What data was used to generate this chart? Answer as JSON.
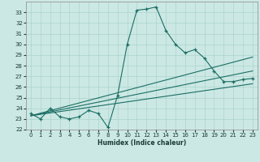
{
  "xlabel": "Humidex (Indice chaleur)",
  "ylabel": "",
  "bg_color": "#cce8e4",
  "line_color": "#1a6e64",
  "grid_color": "#aad4cc",
  "xlim": [
    -0.5,
    23.5
  ],
  "ylim": [
    22,
    34
  ],
  "yticks": [
    22,
    23,
    24,
    25,
    26,
    27,
    28,
    29,
    30,
    31,
    32,
    33
  ],
  "xticks": [
    0,
    1,
    2,
    3,
    4,
    5,
    6,
    7,
    8,
    9,
    10,
    11,
    12,
    13,
    14,
    15,
    16,
    17,
    18,
    19,
    20,
    21,
    22,
    23
  ],
  "main_x": [
    0,
    1,
    2,
    3,
    4,
    5,
    6,
    7,
    8,
    9,
    10,
    11,
    12,
    13,
    14,
    15,
    16,
    17,
    18,
    19,
    20,
    21,
    22,
    23
  ],
  "main_y": [
    23.5,
    23.0,
    24.0,
    23.2,
    23.0,
    23.2,
    23.8,
    23.5,
    22.2,
    25.2,
    30.0,
    33.2,
    33.3,
    33.5,
    31.3,
    30.0,
    29.2,
    29.5,
    28.7,
    27.5,
    26.5,
    26.5,
    26.7,
    26.8
  ],
  "line2_x": [
    0,
    23
  ],
  "line2_y": [
    23.3,
    28.8
  ],
  "line3_x": [
    0,
    23
  ],
  "line3_y": [
    23.3,
    27.5
  ],
  "line4_x": [
    0,
    23
  ],
  "line4_y": [
    23.3,
    26.3
  ]
}
